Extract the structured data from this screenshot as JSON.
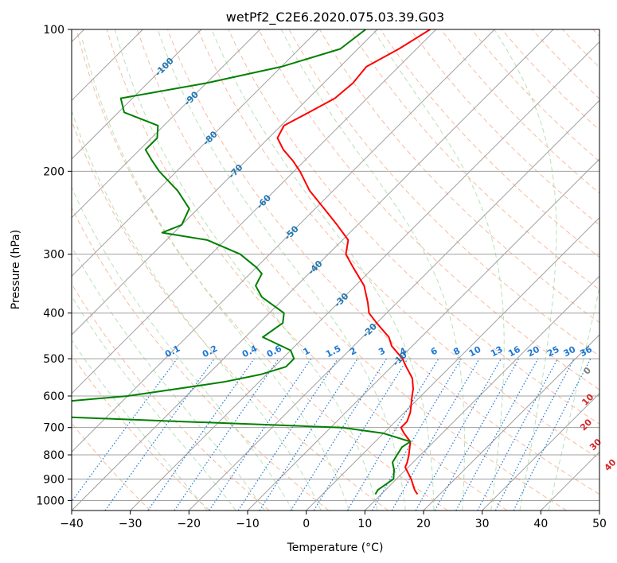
{
  "chart_data": {
    "type": "line",
    "subtype": "skew-t log-p diagram",
    "title": "wetPf2_C2E6.2020.075.03.39.G03",
    "xlabel": "Temperature (°C)",
    "ylabel": "Pressure (hPa)",
    "xlim": [
      -40,
      50
    ],
    "ylim": [
      1050,
      100
    ],
    "y_scale": "log",
    "x_ticks": [
      -40,
      -30,
      -20,
      -10,
      0,
      10,
      20,
      30,
      40,
      50
    ],
    "y_ticks": [
      100,
      200,
      300,
      400,
      500,
      600,
      700,
      800,
      900,
      1000
    ],
    "grid": true,
    "legend": "none",
    "colors": {
      "temperature": "#ff0000",
      "dewpoint": "#008000",
      "isotherm": "#a0a0a0",
      "dry_adiabat": "#f4a582",
      "moist_adiabat": "#a6d9a6",
      "mixing_ratio": "#1f77d4",
      "isotherm_label": "#1f77b4",
      "dry_adiabat_label": "#d62728"
    },
    "series": [
      {
        "role": "temperature",
        "points": [
          [
            100,
            -61
          ],
          [
            110,
            -63
          ],
          [
            120,
            -65.5
          ],
          [
            130,
            -65
          ],
          [
            140,
            -65.5
          ],
          [
            150,
            -67.5
          ],
          [
            160,
            -69.5
          ],
          [
            170,
            -68.5
          ],
          [
            180,
            -65.5
          ],
          [
            190,
            -62
          ],
          [
            200,
            -59
          ],
          [
            220,
            -54
          ],
          [
            240,
            -48.5
          ],
          [
            260,
            -43.5
          ],
          [
            280,
            -39
          ],
          [
            300,
            -37
          ],
          [
            320,
            -33.5
          ],
          [
            350,
            -28.5
          ],
          [
            380,
            -25
          ],
          [
            400,
            -23
          ],
          [
            420,
            -20
          ],
          [
            450,
            -15.5
          ],
          [
            470,
            -13.5
          ],
          [
            500,
            -9.5
          ],
          [
            520,
            -7.5
          ],
          [
            550,
            -4.5
          ],
          [
            580,
            -2.5
          ],
          [
            600,
            -1.5
          ],
          [
            650,
            1
          ],
          [
            680,
            2
          ],
          [
            700,
            2
          ],
          [
            720,
            3.5
          ],
          [
            750,
            6
          ],
          [
            800,
            8
          ],
          [
            830,
            9
          ],
          [
            850,
            9.5
          ],
          [
            900,
            12.5
          ],
          [
            950,
            15
          ],
          [
            970,
            16.2
          ]
        ]
      },
      {
        "role": "dewpoint",
        "points": [
          [
            100,
            -72
          ],
          [
            110,
            -73
          ],
          [
            120,
            -80
          ],
          [
            130,
            -90
          ],
          [
            140,
            -102
          ],
          [
            150,
            -99
          ],
          [
            160,
            -91
          ],
          [
            170,
            -89
          ],
          [
            180,
            -89
          ],
          [
            190,
            -86
          ],
          [
            200,
            -83
          ],
          [
            220,
            -76.5
          ],
          [
            240,
            -71.5
          ],
          [
            260,
            -70
          ],
          [
            270,
            -72
          ],
          [
            280,
            -63
          ],
          [
            300,
            -55
          ],
          [
            320,
            -50
          ],
          [
            330,
            -48
          ],
          [
            350,
            -47
          ],
          [
            370,
            -44
          ],
          [
            400,
            -37.5
          ],
          [
            420,
            -36
          ],
          [
            450,
            -37
          ],
          [
            480,
            -30
          ],
          [
            500,
            -28
          ],
          [
            520,
            -28
          ],
          [
            540,
            -31
          ],
          [
            560,
            -36
          ],
          [
            580,
            -43
          ],
          [
            600,
            -50
          ],
          [
            620,
            -62
          ],
          [
            640,
            -76
          ],
          [
            650,
            -78
          ],
          [
            670,
            -50
          ],
          [
            680,
            -36
          ],
          [
            700,
            -8
          ],
          [
            720,
            0
          ],
          [
            750,
            6
          ],
          [
            770,
            5.5
          ],
          [
            800,
            6
          ],
          [
            830,
            6.5
          ],
          [
            860,
            8
          ],
          [
            900,
            9.5
          ],
          [
            950,
            8.7
          ],
          [
            970,
            9
          ]
        ]
      }
    ],
    "isotherm_labels": [
      -100,
      -90,
      -80,
      -70,
      -60,
      -50,
      -40,
      -30,
      -20,
      -10
    ],
    "mixing_ratio_labels": [
      "0.1",
      "0.2",
      "0.4",
      "0.6",
      "1",
      "1.5",
      "2",
      "3",
      "4",
      "6",
      "8",
      "10",
      "13",
      "16",
      "20",
      "25",
      "30",
      "36"
    ],
    "mixing_ratio_values": [
      0.1,
      0.2,
      0.4,
      0.6,
      1,
      1.5,
      2,
      3,
      4,
      6,
      8,
      10,
      13,
      16,
      20,
      25,
      30,
      36
    ],
    "dry_adiabat_labels": [
      "0",
      "10",
      "20",
      "30",
      "40"
    ]
  }
}
